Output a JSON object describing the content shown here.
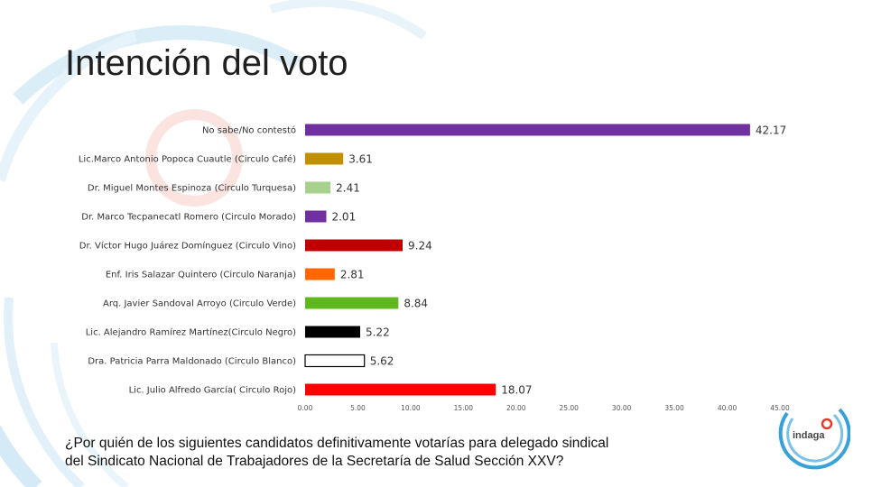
{
  "slide": {
    "title": "Intención del voto",
    "question_line1": "¿Por quién de los siguientes candidatos definitivamente votarías para delegado sindical",
    "question_line2": "del Sindicato Nacional de Trabajadores de la Secretaría de Salud Sección XXV?"
  },
  "logo": {
    "text": "indaga",
    "ring_color": "#3aa0d8",
    "dot_color": "#e23b2b"
  },
  "chart_data": {
    "type": "bar",
    "orientation": "horizontal",
    "title": "",
    "xlabel": "",
    "ylabel": "",
    "xlim": [
      0,
      45
    ],
    "ticks": [
      "0.00",
      "5.00",
      "10.00",
      "15.00",
      "20.00",
      "25.00",
      "30.00",
      "35.00",
      "40.00",
      "45.00"
    ],
    "grid": false,
    "categories": [
      "No sabe/No contestó",
      "Lic.Marco Antonio Popoca Cuautle (Circulo Café)",
      "Dr. Miguel Montes Espinoza (Circulo Turquesa)",
      "Dr. Marco Tecpanecatl Romero (Circulo Morado)",
      "Dr. Víctor Hugo Juárez Domínguez (Circulo Vino)",
      "Enf. Iris Salazar Quintero (Circulo Naranja)",
      "Arq. Javier Sandoval Arroyo (Circulo Verde)",
      "Lic. Alejandro Ramírez Martínez(Circulo Negro)",
      "Dra. Patricia Parra Maldonado (Circulo Blanco)",
      "Lic. Julio Alfredo García( Circulo Rojo)"
    ],
    "values": [
      42.17,
      3.61,
      2.41,
      2.01,
      9.24,
      2.81,
      8.84,
      5.22,
      5.62,
      18.07
    ],
    "value_labels": [
      "42.17",
      "3.61",
      "2.41",
      "2.01",
      "9.24",
      "2.81",
      "8.84",
      "5.22",
      "5.62",
      "18.07"
    ],
    "colors": [
      "#7030a0",
      "#bf9000",
      "#a9d18e",
      "#7030a0",
      "#c00000",
      "#ff6600",
      "#5fb81e",
      "#000000",
      "#ffffff",
      "#ff0000"
    ],
    "outline": [
      "none",
      "none",
      "none",
      "none",
      "none",
      "none",
      "none",
      "none",
      "#000000",
      "none"
    ]
  }
}
